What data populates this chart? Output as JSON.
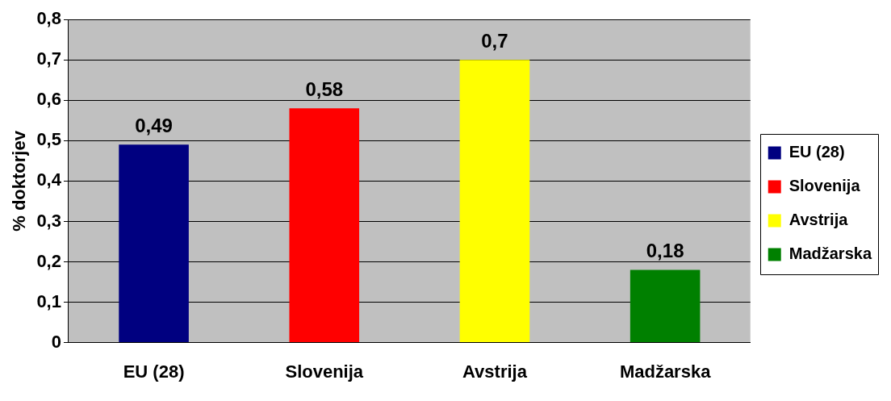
{
  "chart_data": {
    "type": "bar",
    "ylabel": "% doktorjev",
    "categories": [
      "EU (28)",
      "Slovenija",
      "Avstrija",
      "Madžarska"
    ],
    "series": [
      {
        "name": "EU (28)",
        "color": "#000080",
        "values": [
          0.49,
          null,
          null,
          null
        ],
        "value_labels": [
          "0,49",
          null,
          null,
          null
        ]
      },
      {
        "name": "Slovenija",
        "color": "#ff0000",
        "values": [
          null,
          0.58,
          null,
          null
        ],
        "value_labels": [
          null,
          "0,58",
          null,
          null
        ]
      },
      {
        "name": "Avstrija",
        "color": "#ffff00",
        "values": [
          null,
          null,
          0.7,
          null
        ],
        "value_labels": [
          null,
          null,
          "0,7",
          null
        ]
      },
      {
        "name": "Madžarska",
        "color": "#008000",
        "values": [
          null,
          null,
          null,
          0.18
        ],
        "value_labels": [
          null,
          null,
          null,
          "0,18"
        ]
      }
    ],
    "ylim": [
      0,
      0.8
    ],
    "yticks": [
      {
        "value": 0,
        "label": "0"
      },
      {
        "value": 0.1,
        "label": "0,1"
      },
      {
        "value": 0.2,
        "label": "0,2"
      },
      {
        "value": 0.3,
        "label": "0,3"
      },
      {
        "value": 0.4,
        "label": "0,4"
      },
      {
        "value": 0.5,
        "label": "0,5"
      },
      {
        "value": 0.6,
        "label": "0,6"
      },
      {
        "value": 0.7,
        "label": "0,7"
      },
      {
        "value": 0.8,
        "label": "0,8"
      }
    ],
    "grid": "y",
    "legend": "right"
  }
}
